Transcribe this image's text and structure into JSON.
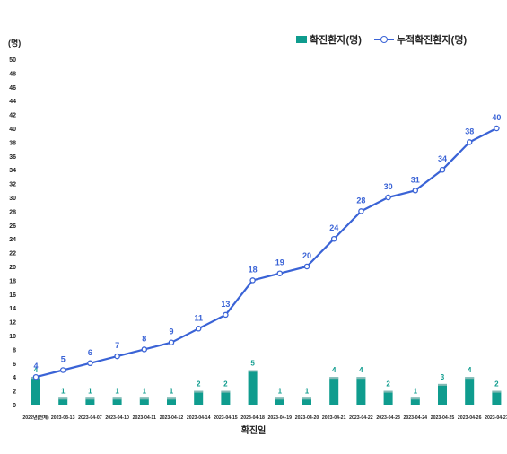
{
  "chart_data": {
    "type": "bar",
    "categories": [
      "2022년(전체)",
      "2023-03-13",
      "2023-04-07",
      "2023-04-10",
      "2023-04-11",
      "2023-04-12",
      "2023-04-14",
      "2023-04-15",
      "2023-04-18",
      "2023-04-19",
      "2023-04-20",
      "2023-04-21",
      "2023-04-22",
      "2023-04-23",
      "2023-04-24",
      "2023-04-25",
      "2023-04-26",
      "2023-04-27"
    ],
    "series": [
      {
        "name": "확진환자(명)",
        "type": "bar",
        "color": "#0f9c8e",
        "values": [
          4,
          1,
          1,
          1,
          1,
          1,
          2,
          2,
          5,
          1,
          1,
          4,
          4,
          2,
          1,
          3,
          4,
          2
        ]
      },
      {
        "name": "누적확진환자(명)",
        "type": "line",
        "color": "#3a63d6",
        "values": [
          4,
          5,
          6,
          7,
          8,
          9,
          11,
          13,
          18,
          19,
          20,
          24,
          28,
          30,
          31,
          34,
          38,
          40
        ]
      }
    ],
    "title": "",
    "xlabel": "확진일",
    "ylabel": "(명)",
    "ylim": [
      0,
      50
    ],
    "ytick_step": 2,
    "grid": false,
    "legend": "top-right"
  }
}
